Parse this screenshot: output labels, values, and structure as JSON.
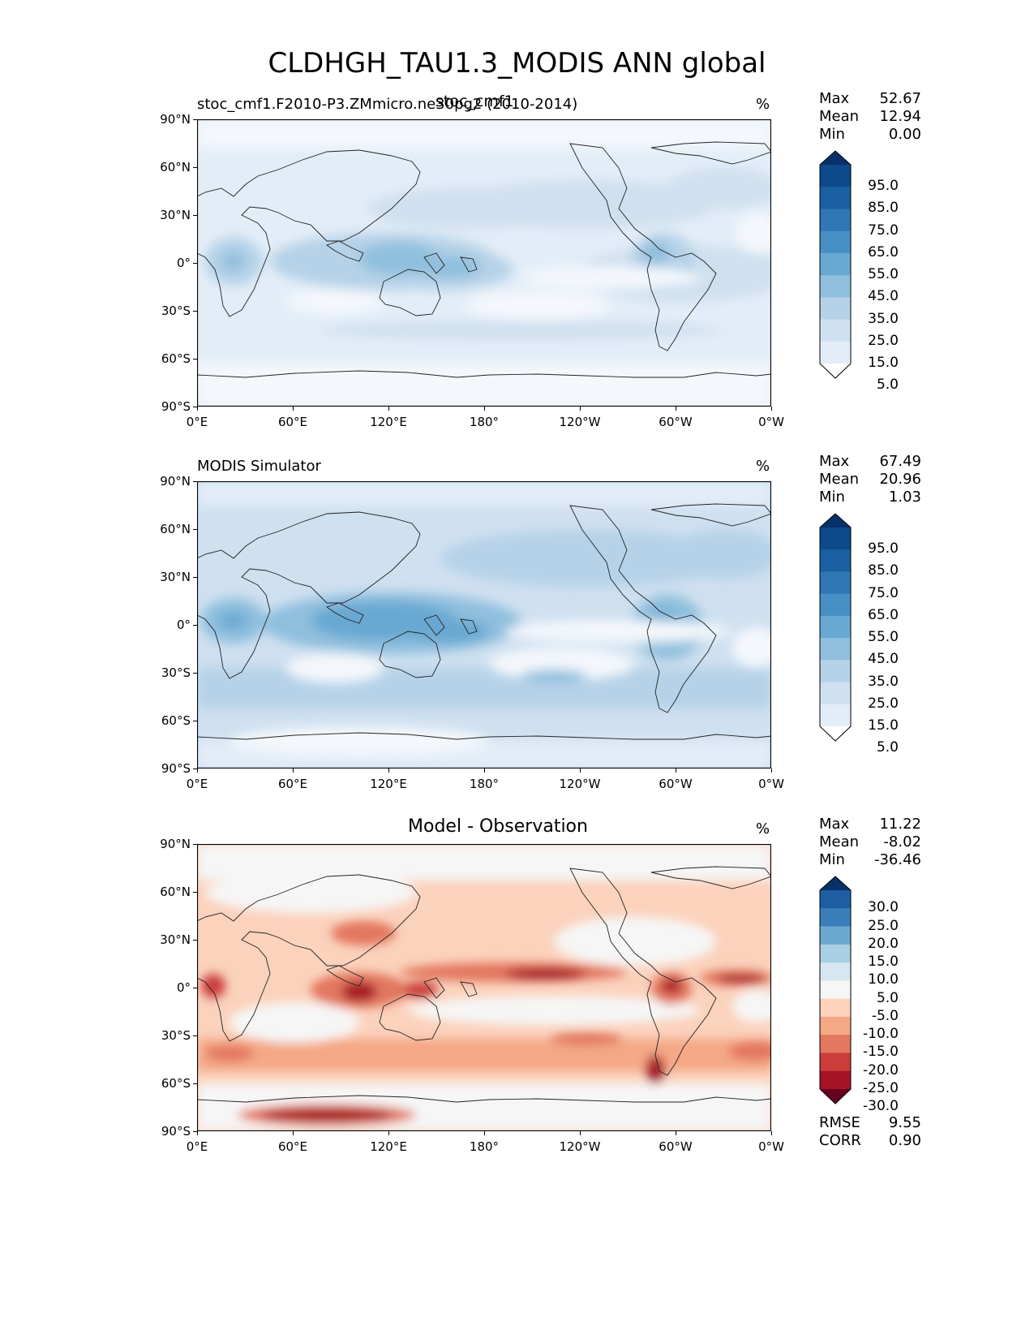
{
  "title": "CLDHGH_TAU1.3_MODIS ANN global",
  "panels": [
    {
      "left_title": "stoc_cmf1.F2010-P3.ZMmicro.ne30pg2 (2010-2014)",
      "overlay_title": "stoc_cmf1",
      "center_title": "",
      "units": "%",
      "stats": {
        "max_label": "Max",
        "max": "52.67",
        "mean_label": "Mean",
        "mean": "12.94",
        "min_label": "Min",
        "min": "0.00"
      },
      "colorbar_labels": [
        "95.0",
        "85.0",
        "75.0",
        "65.0",
        "55.0",
        "45.0",
        "35.0",
        "25.0",
        "15.0",
        "5.0"
      ]
    },
    {
      "left_title": "MODIS Simulator",
      "overlay_title": "",
      "center_title": "",
      "units": "%",
      "stats": {
        "max_label": "Max",
        "max": "67.49",
        "mean_label": "Mean",
        "mean": "20.96",
        "min_label": "Min",
        "min": "1.03"
      },
      "colorbar_labels": [
        "95.0",
        "85.0",
        "75.0",
        "65.0",
        "55.0",
        "45.0",
        "35.0",
        "25.0",
        "15.0",
        "5.0"
      ]
    },
    {
      "left_title": "",
      "overlay_title": "",
      "center_title": "Model - Observation",
      "units": "%",
      "stats": {
        "max_label": "Max",
        "max": "11.22",
        "mean_label": "Mean",
        "mean": "-8.02",
        "min_label": "Min",
        "min": "-36.46"
      },
      "colorbar_labels": [
        "30.0",
        "25.0",
        "20.0",
        "15.0",
        "10.0",
        "5.0",
        "-5.0",
        "-10.0",
        "-15.0",
        "-20.0",
        "-25.0",
        "-30.0"
      ],
      "metrics": {
        "rmse_label": "RMSE",
        "rmse": "9.55",
        "corr_label": "CORR",
        "corr": "0.90"
      }
    }
  ],
  "axes": {
    "lat_ticks": [
      "90°N",
      "60°N",
      "30°N",
      "0°",
      "30°S",
      "60°S",
      "90°S"
    ],
    "lon_ticks": [
      "0°E",
      "60°E",
      "120°E",
      "180°",
      "120°W",
      "60°W",
      "0°W"
    ]
  },
  "colors": {
    "blues": [
      "#ffffff",
      "#e3edf7",
      "#cfe0f0",
      "#b5d2e8",
      "#8fbfdd",
      "#68a8d2",
      "#4790c6",
      "#2e78b5",
      "#1a5fa2",
      "#0c4a8c",
      "#08306b"
    ],
    "diverging": [
      "#67001f",
      "#a51327",
      "#cb3d3a",
      "#e3775f",
      "#f4a886",
      "#fbd2bc",
      "#f6f6f6",
      "#d6e7f1",
      "#a9cfe4",
      "#6ba9d0",
      "#3a7fbb",
      "#1d5ea3",
      "#08306b"
    ]
  },
  "chart_data": [
    {
      "type": "heatmap",
      "title": "stoc_cmf1.F2010-P3.ZMmicro.ne30pg2 (2010-2014)",
      "variable": "CLDHGH_TAU1.3_MODIS",
      "units": "%",
      "xlim": [
        0,
        360
      ],
      "ylim": [
        -90,
        90
      ],
      "colorbar_levels": [
        5,
        15,
        25,
        35,
        45,
        55,
        65,
        75,
        85,
        95
      ],
      "extend": "both",
      "max": 52.67,
      "mean": 12.94,
      "min": 0.0,
      "features": [
        {
          "lon": 125,
          "lat": 3,
          "value": 40
        },
        {
          "lon": 160,
          "lat": -5,
          "value": 35
        },
        {
          "lon": 285,
          "lat": 5,
          "value": 35
        },
        {
          "lon": 20,
          "lat": 0,
          "value": 30
        }
      ]
    },
    {
      "type": "heatmap",
      "title": "MODIS Simulator",
      "variable": "CLDHGH_TAU1.3_MODIS",
      "units": "%",
      "xlim": [
        0,
        360
      ],
      "ylim": [
        -90,
        90
      ],
      "colorbar_levels": [
        5,
        15,
        25,
        35,
        45,
        55,
        65,
        75,
        85,
        95
      ],
      "extend": "both",
      "max": 67.49,
      "mean": 20.96,
      "min": 1.03,
      "features": [
        {
          "lon": 115,
          "lat": 0,
          "value": 55
        },
        {
          "lon": 150,
          "lat": -3,
          "value": 45
        },
        {
          "lon": 295,
          "lat": -5,
          "value": 45
        },
        {
          "lon": 20,
          "lat": 0,
          "value": 40
        }
      ]
    },
    {
      "type": "heatmap",
      "title": "Model - Observation",
      "variable": "CLDHGH_TAU1.3_MODIS",
      "units": "%",
      "xlim": [
        0,
        360
      ],
      "ylim": [
        -90,
        90
      ],
      "colorbar_levels": [
        -30,
        -25,
        -20,
        -15,
        -10,
        -5,
        5,
        10,
        15,
        20,
        25,
        30
      ],
      "extend": "both",
      "max": 11.22,
      "mean": -8.02,
      "min": -36.46,
      "rmse": 9.55,
      "corr": 0.9,
      "features": [
        {
          "lon": 85,
          "lat": -77,
          "value": -30
        },
        {
          "lon": 235,
          "lat": 8,
          "value": -28
        },
        {
          "lon": 335,
          "lat": 5,
          "value": -30
        },
        {
          "lon": 295,
          "lat": -2,
          "value": -30
        },
        {
          "lon": 300,
          "lat": -50,
          "value": -25
        },
        {
          "lon": 95,
          "lat": -5,
          "value": -30
        }
      ]
    }
  ]
}
